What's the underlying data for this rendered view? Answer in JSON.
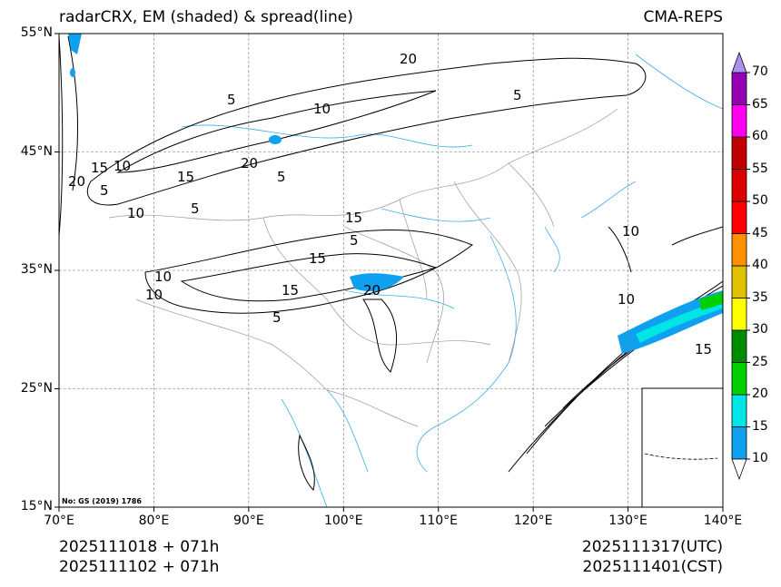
{
  "title_left": "radarCRX, EM (shaded) & spread(line)",
  "title_right": "CMA-REPS",
  "map": {
    "lon_range": [
      70,
      140
    ],
    "lat_range": [
      15,
      55
    ],
    "lon_ticks": [
      "70°E",
      "80°E",
      "90°E",
      "100°E",
      "110°E",
      "120°E",
      "130°E",
      "140°E"
    ],
    "lat_ticks": [
      "15°N",
      "25°N",
      "35°N",
      "45°N",
      "55°N"
    ],
    "approval_no": "No: GS (2019) 1786",
    "contour_labels": [
      "5",
      "10",
      "15",
      "20",
      "5",
      "10",
      "15",
      "20",
      "5",
      "10",
      "15",
      "5",
      "10",
      "15",
      "20",
      "5",
      "10",
      "15",
      "20",
      "10",
      "5",
      "15",
      "10",
      "5"
    ]
  },
  "colorbar": {
    "levels": [
      "10",
      "15",
      "20",
      "25",
      "30",
      "35",
      "40",
      "45",
      "50",
      "55",
      "60",
      "65",
      "70"
    ],
    "colors": [
      "#0fa0f0",
      "#00e5e5",
      "#00d000",
      "#008c00",
      "#ffff00",
      "#e0c000",
      "#ff9000",
      "#ff0000",
      "#dc0000",
      "#c00000",
      "#ff00f0",
      "#9600b4",
      "#ad90f0"
    ],
    "under_color": "#ffffff"
  },
  "footer": {
    "init_utc": "2025111018  +  071h",
    "init_cst": "2025111102  +  071h",
    "valid_utc": "2025111317(UTC)",
    "valid_cst": "2025111401(CST)"
  }
}
